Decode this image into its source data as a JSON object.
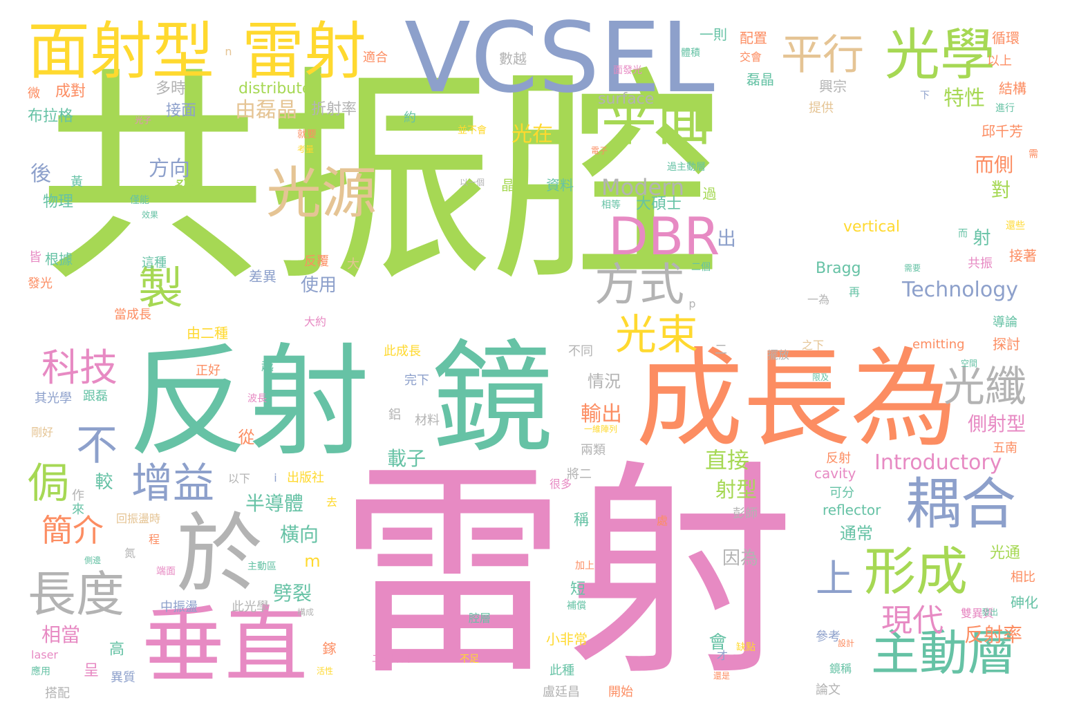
{
  "palette": {
    "green": "#a6d854",
    "teal": "#66c2a5",
    "pink": "#e78ac3",
    "orange": "#fc8d62",
    "blue": "#8da0cb",
    "yellow": "#ffd92f",
    "tan": "#e5c494",
    "gray": "#b3b3b3"
  },
  "words": [
    {
      "t": "共振腔",
      "c": "green"
    },
    {
      "t": "雷射",
      "c": "pink"
    },
    {
      "t": "反射",
      "c": "teal"
    },
    {
      "t": "鏡",
      "c": "teal"
    },
    {
      "t": "成長為",
      "c": "orange"
    },
    {
      "t": "VCSEL",
      "c": "blue"
    },
    {
      "t": "面射型",
      "c": "yellow"
    },
    {
      "t": "雷射",
      "c": "yellow"
    },
    {
      "t": "垂直",
      "c": "pink"
    },
    {
      "t": "於",
      "c": "gray"
    },
    {
      "t": "平面",
      "c": "green"
    },
    {
      "t": "光學",
      "c": "green"
    },
    {
      "t": "平行",
      "c": "tan"
    },
    {
      "t": "光源",
      "c": "tan"
    },
    {
      "t": "DBR",
      "c": "pink"
    },
    {
      "t": "耦合",
      "c": "blue"
    },
    {
      "t": "形成",
      "c": "green"
    },
    {
      "t": "主動層",
      "c": "teal"
    },
    {
      "t": "長度",
      "c": "gray"
    },
    {
      "t": "增益",
      "c": "blue"
    },
    {
      "t": "科技",
      "c": "pink"
    },
    {
      "t": "方式",
      "c": "gray"
    },
    {
      "t": "光纖",
      "c": "gray"
    },
    {
      "t": "光束",
      "c": "yellow"
    },
    {
      "t": "製",
      "c": "green"
    },
    {
      "t": "不",
      "c": "blue"
    },
    {
      "t": "侷",
      "c": "green"
    },
    {
      "t": "上",
      "c": "blue"
    },
    {
      "t": "現代",
      "c": "pink"
    },
    {
      "t": "簡介",
      "c": "orange"
    },
    {
      "t": "Modern",
      "c": "gray"
    },
    {
      "t": "Technology",
      "c": "blue"
    },
    {
      "t": "Introductory",
      "c": "pink"
    },
    {
      "t": "特性",
      "c": "green"
    },
    {
      "t": "由磊晶",
      "c": "tan"
    },
    {
      "t": "方向",
      "c": "blue"
    },
    {
      "t": "光在",
      "c": "yellow"
    },
    {
      "t": "直接",
      "c": "green"
    },
    {
      "t": "射型",
      "c": "green"
    },
    {
      "t": "輸出",
      "c": "orange"
    },
    {
      "t": "半導體",
      "c": "teal"
    },
    {
      "t": "載子",
      "c": "teal"
    },
    {
      "t": "反射率",
      "c": "orange"
    },
    {
      "t": "側射型",
      "c": "pink"
    },
    {
      "t": "而側",
      "c": "orange"
    },
    {
      "t": "橫向",
      "c": "teal"
    },
    {
      "t": "劈裂",
      "c": "teal"
    },
    {
      "t": "相當",
      "c": "pink"
    },
    {
      "t": "通常",
      "c": "teal"
    },
    {
      "t": "使用",
      "c": "blue"
    },
    {
      "t": "情況",
      "c": "gray"
    },
    {
      "t": "因為",
      "c": "gray"
    },
    {
      "t": "distributed",
      "c": "green"
    },
    {
      "t": "surface",
      "c": "gray"
    },
    {
      "t": "vertical",
      "c": "yellow"
    },
    {
      "t": "Bragg",
      "c": "teal"
    },
    {
      "t": "emitting",
      "c": "orange"
    },
    {
      "t": "cavity",
      "c": "pink"
    },
    {
      "t": "reflector",
      "c": "teal"
    },
    {
      "t": "laser",
      "c": "pink"
    },
    {
      "t": "大碩士",
      "c": "teal"
    },
    {
      "t": "資料",
      "c": "teal"
    },
    {
      "t": "晶片",
      "c": "green"
    },
    {
      "t": "接面",
      "c": "blue"
    },
    {
      "t": "折射率",
      "c": "gray"
    },
    {
      "t": "成對",
      "c": "orange"
    },
    {
      "t": "多時",
      "c": "gray"
    },
    {
      "t": "布拉格",
      "c": "teal"
    },
    {
      "t": "物理",
      "c": "teal"
    },
    {
      "t": "根據",
      "c": "teal"
    },
    {
      "t": "發光",
      "c": "orange"
    },
    {
      "t": "這種",
      "c": "teal"
    },
    {
      "t": "差異",
      "c": "blue"
    },
    {
      "t": "反覆",
      "c": "orange"
    },
    {
      "t": "大約",
      "c": "pink"
    },
    {
      "t": "由二種",
      "c": "yellow"
    },
    {
      "t": "當成長",
      "c": "orange"
    },
    {
      "t": "此成長",
      "c": "yellow"
    },
    {
      "t": "不同",
      "c": "gray"
    },
    {
      "t": "擺放",
      "c": "gray"
    },
    {
      "t": "正好",
      "c": "orange"
    },
    {
      "t": "其光學",
      "c": "blue"
    },
    {
      "t": "跟磊",
      "c": "teal"
    },
    {
      "t": "剛好",
      "c": "tan"
    },
    {
      "t": "完下",
      "c": "blue"
    },
    {
      "t": "材料",
      "c": "gray"
    },
    {
      "t": "兩類",
      "c": "gray"
    },
    {
      "t": "將二",
      "c": "gray"
    },
    {
      "t": "以下",
      "c": "gray"
    },
    {
      "t": "出版社",
      "c": "yellow"
    },
    {
      "t": "回振盪時",
      "c": "tan"
    },
    {
      "t": "很多",
      "c": "pink"
    },
    {
      "t": "中振盪",
      "c": "blue"
    },
    {
      "t": "此光學",
      "c": "gray"
    },
    {
      "t": "主動區",
      "c": "teal"
    },
    {
      "t": "可分",
      "c": "teal"
    },
    {
      "t": "彭師",
      "c": "gray"
    },
    {
      "t": "光通",
      "c": "green"
    },
    {
      "t": "相比",
      "c": "orange"
    },
    {
      "t": "砷化",
      "c": "teal"
    },
    {
      "t": "雙異質",
      "c": "pink"
    },
    {
      "t": "參考",
      "c": "blue"
    },
    {
      "t": "鏡稱",
      "c": "teal"
    },
    {
      "t": "論文",
      "c": "gray"
    },
    {
      "t": "此種",
      "c": "teal"
    },
    {
      "t": "盧廷昌",
      "c": "gray"
    },
    {
      "t": "開始",
      "c": "orange"
    },
    {
      "t": "小非常",
      "c": "yellow"
    },
    {
      "t": "異質",
      "c": "blue"
    },
    {
      "t": "搭配",
      "c": "gray"
    },
    {
      "t": "應用",
      "c": "teal"
    },
    {
      "t": "二維陣列",
      "c": "pink"
    },
    {
      "t": "不足",
      "c": "yellow"
    },
    {
      "t": "腔層",
      "c": "teal"
    },
    {
      "t": "高",
      "c": "teal"
    },
    {
      "t": "呈",
      "c": "pink"
    },
    {
      "t": "會",
      "c": "teal"
    },
    {
      "t": "短",
      "c": "teal"
    },
    {
      "t": "稱",
      "c": "teal"
    },
    {
      "t": "從",
      "c": "orange"
    },
    {
      "t": "較",
      "c": "teal"
    },
    {
      "t": "射",
      "c": "teal"
    },
    {
      "t": "對",
      "c": "green"
    },
    {
      "t": "出",
      "c": "blue"
    },
    {
      "t": "發",
      "c": "green"
    },
    {
      "t": "後",
      "c": "blue"
    },
    {
      "t": "二",
      "c": "gray"
    },
    {
      "t": "m",
      "c": "yellow"
    },
    {
      "t": "p",
      "c": "gray"
    },
    {
      "t": "n",
      "c": "tan"
    },
    {
      "t": "i",
      "c": "blue"
    },
    {
      "t": "一則",
      "c": "teal"
    },
    {
      "t": "配置",
      "c": "orange"
    },
    {
      "t": "交會",
      "c": "orange"
    },
    {
      "t": "體積",
      "c": "teal"
    },
    {
      "t": "適合",
      "c": "orange"
    },
    {
      "t": "數越",
      "c": "gray"
    },
    {
      "t": "面發光",
      "c": "pink"
    },
    {
      "t": "磊晶",
      "c": "teal"
    },
    {
      "t": "興宗",
      "c": "gray"
    },
    {
      "t": "提供",
      "c": "tan"
    },
    {
      "t": "循環",
      "c": "orange"
    },
    {
      "t": "以上",
      "c": "orange"
    },
    {
      "t": "結構",
      "c": "orange"
    },
    {
      "t": "進行",
      "c": "teal"
    },
    {
      "t": "邱千芳",
      "c": "orange"
    },
    {
      "t": "探討",
      "c": "orange"
    },
    {
      "t": "導論",
      "c": "teal"
    },
    {
      "t": "接著",
      "c": "orange"
    },
    {
      "t": "共振",
      "c": "pink"
    },
    {
      "t": "還些",
      "c": "yellow"
    },
    {
      "t": "再",
      "c": "teal"
    },
    {
      "t": "一為",
      "c": "gray"
    },
    {
      "t": "之下",
      "c": "tan"
    },
    {
      "t": "空間",
      "c": "teal"
    },
    {
      "t": "限及",
      "c": "teal"
    },
    {
      "t": "五南",
      "c": "orange"
    },
    {
      "t": "反射",
      "c": "orange"
    },
    {
      "t": "需要",
      "c": "teal"
    },
    {
      "t": "二個",
      "c": "teal"
    },
    {
      "t": "過主動層",
      "c": "teal"
    },
    {
      "t": "過",
      "c": "green"
    },
    {
      "t": "相等",
      "c": "teal"
    },
    {
      "t": "電子",
      "c": "orange"
    },
    {
      "t": "以一個",
      "c": "gray"
    },
    {
      "t": "並不會",
      "c": "yellow"
    },
    {
      "t": "就要",
      "c": "orange"
    },
    {
      "t": "考量",
      "c": "yellow"
    },
    {
      "t": "光子",
      "c": "pink"
    },
    {
      "t": "微",
      "c": "orange"
    },
    {
      "t": "約",
      "c": "teal"
    },
    {
      "t": "黃",
      "c": "teal"
    },
    {
      "t": "僅能",
      "c": "teal"
    },
    {
      "t": "效果",
      "c": "teal"
    },
    {
      "t": "皆",
      "c": "pink"
    },
    {
      "t": "大",
      "c": "tan"
    },
    {
      "t": "越",
      "c": "teal"
    },
    {
      "t": "波長",
      "c": "pink"
    },
    {
      "t": "鋁",
      "c": "gray"
    },
    {
      "t": "作",
      "c": "gray"
    },
    {
      "t": "來",
      "c": "teal"
    },
    {
      "t": "去",
      "c": "yellow"
    },
    {
      "t": "一維陣列",
      "c": "yellow"
    },
    {
      "t": "處",
      "c": "orange"
    },
    {
      "t": "程",
      "c": "orange"
    },
    {
      "t": "側邊",
      "c": "teal"
    },
    {
      "t": "端面",
      "c": "pink"
    },
    {
      "t": "氮",
      "c": "gray"
    },
    {
      "t": "加上",
      "c": "orange"
    },
    {
      "t": "補償",
      "c": "teal"
    },
    {
      "t": "構成",
      "c": "gray"
    },
    {
      "t": "鎵",
      "c": "orange"
    },
    {
      "t": "活性",
      "c": "yellow"
    },
    {
      "t": "缺點",
      "c": "yellow"
    },
    {
      "t": "才",
      "c": "blue"
    },
    {
      "t": "還是",
      "c": "orange"
    },
    {
      "t": "設計",
      "c": "orange"
    },
    {
      "t": "發出",
      "c": "teal"
    },
    {
      "t": "下",
      "c": "blue"
    },
    {
      "t": "需",
      "c": "orange"
    },
    {
      "t": "而",
      "c": "teal"
    }
  ]
}
